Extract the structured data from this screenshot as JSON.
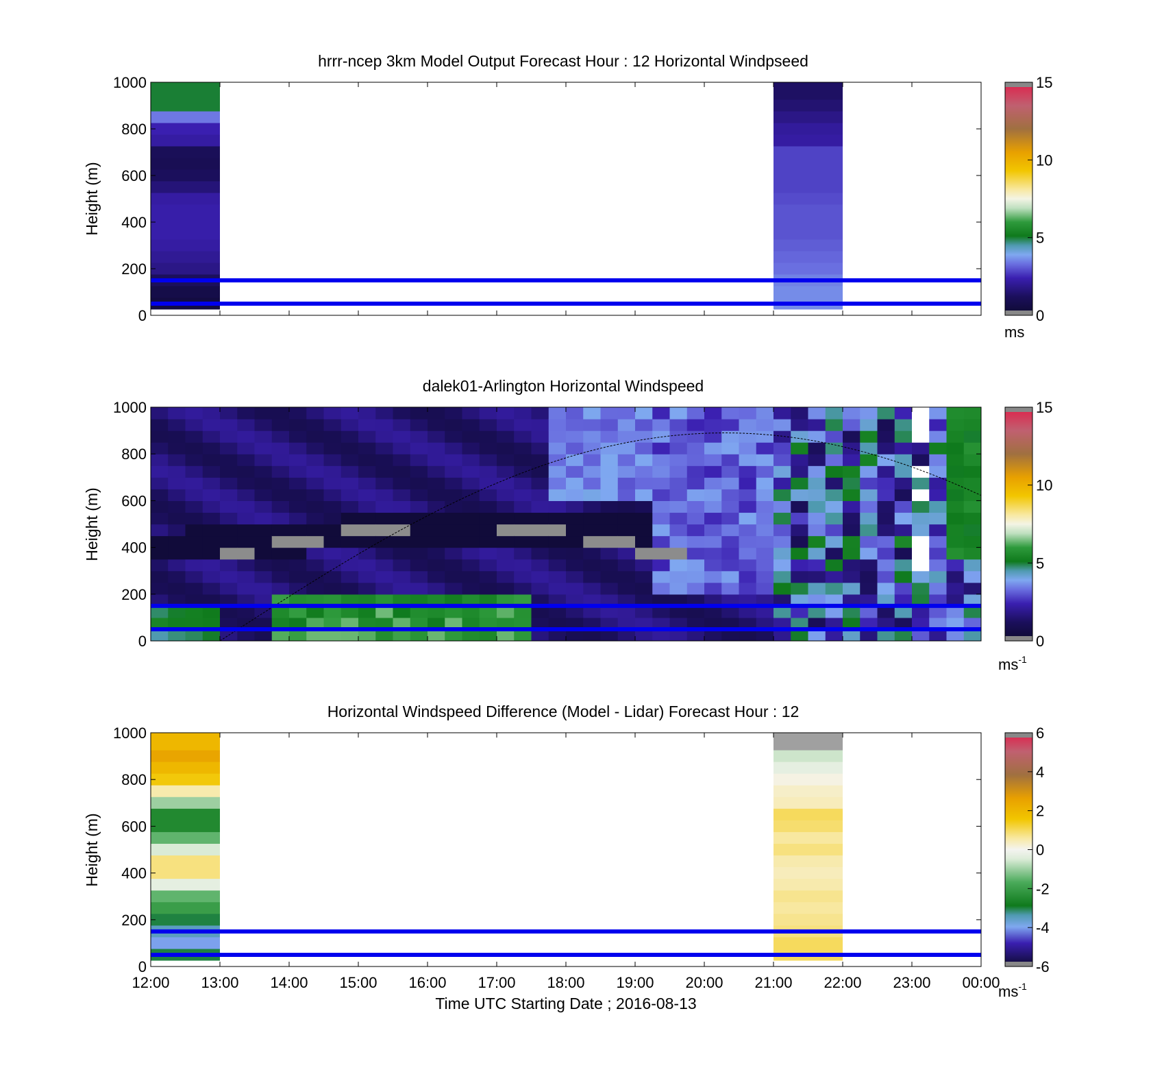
{
  "figure": {
    "xlabel": "Time UTC  Starting Date ; 2016-08-13",
    "time_ticks": [
      "12:00",
      "13:00",
      "14:00",
      "15:00",
      "16:00",
      "17:00",
      "18:00",
      "19:00",
      "20:00",
      "21:00",
      "22:00",
      "23:00",
      "00:00"
    ]
  },
  "chart_data": [
    {
      "type": "heatmap",
      "title": "hrrr-ncep 3km Model Output   Forecast Hour : 12 Horizontal Windpseed",
      "xlabel": "",
      "ylabel": "Height (m)",
      "xlim": [
        "12:00",
        "00:00"
      ],
      "ylim": [
        0,
        1000
      ],
      "y_ticks": [
        "0",
        "200",
        "400",
        "600",
        "800",
        "1000"
      ],
      "colorbar": {
        "min": 0,
        "max": 15,
        "ticks": [
          "0",
          "5",
          "10",
          "15"
        ],
        "unit": "ms",
        "unit_sup": ""
      },
      "reference_lines_m": [
        50,
        150
      ],
      "columns": [
        {
          "time_start": "12:00",
          "time_end": "13:00",
          "heights_m": [
            50,
            100,
            150,
            200,
            250,
            300,
            350,
            400,
            450,
            500,
            550,
            600,
            650,
            700,
            750,
            800,
            850,
            900,
            950
          ],
          "values": [
            0.5,
            0.7,
            1.2,
            1.8,
            2.0,
            2.2,
            2.3,
            2.3,
            2.3,
            2.2,
            1.6,
            1.2,
            1.0,
            1.1,
            2.2,
            2.4,
            3.4,
            5.0,
            5.0
          ]
        },
        {
          "time_start": "21:00",
          "time_end": "22:00",
          "heights_m": [
            50,
            100,
            150,
            200,
            250,
            300,
            350,
            400,
            450,
            500,
            550,
            600,
            650,
            700,
            750,
            800,
            850,
            900,
            950
          ],
          "values": [
            3.6,
            3.6,
            3.5,
            3.3,
            3.2,
            3.1,
            3.0,
            3.0,
            3.0,
            2.9,
            2.8,
            2.8,
            2.8,
            2.8,
            2.2,
            2.1,
            1.8,
            1.5,
            1.3
          ]
        }
      ]
    },
    {
      "type": "heatmap",
      "title": "dalek01-Arlington  Horizontal Windspeed",
      "xlabel": "",
      "ylabel": "Height (m)",
      "xlim": [
        "12:00",
        "00:00"
      ],
      "ylim": [
        0,
        1000
      ],
      "y_ticks": [
        "0",
        "200",
        "400",
        "600",
        "800",
        "1000"
      ],
      "colorbar": {
        "min": 0,
        "max": 15,
        "ticks": [
          "0",
          "5",
          "10",
          "15"
        ],
        "unit": "ms",
        "unit_sup": "-1"
      },
      "reference_lines_m": [
        50,
        150
      ],
      "time_columns": 48,
      "height_rows": 20,
      "note_values": "Lidar wind speed field (m/s): 48 quarter-hour columns from 12:00, 20 rows of 50 m"
    },
    {
      "type": "heatmap",
      "title": "Horizontal Windspeed Difference (Model - Lidar) Forecast Hour : 12",
      "xlabel": "Time UTC  Starting Date ; 2016-08-13",
      "ylabel": "Height (m)",
      "xlim": [
        "12:00",
        "00:00"
      ],
      "ylim": [
        0,
        1000
      ],
      "y_ticks": [
        "0",
        "200",
        "400",
        "600",
        "800",
        "1000"
      ],
      "colorbar": {
        "min": -6,
        "max": 6,
        "ticks": [
          "-6",
          "-4",
          "-2",
          "0",
          "2",
          "4",
          "6"
        ],
        "unit": "ms",
        "unit_sup": "-1"
      },
      "reference_lines_m": [
        50,
        150
      ],
      "columns": [
        {
          "time_start": "12:00",
          "time_end": "13:00",
          "heights_m": [
            50,
            100,
            150,
            200,
            250,
            300,
            350,
            400,
            450,
            500,
            550,
            600,
            650,
            700,
            750,
            800,
            850,
            900,
            950
          ],
          "values": [
            -3.0,
            -4.0,
            -3.5,
            -3.0,
            -2.0,
            -1.5,
            -0.3,
            0.8,
            0.8,
            -0.5,
            -1.5,
            -2.5,
            -2.5,
            -1.0,
            0.5,
            1.5,
            2.0,
            2.5,
            2.0
          ]
        },
        {
          "time_start": "21:00",
          "time_end": "22:00",
          "heights_m": [
            50,
            100,
            150,
            200,
            250,
            300,
            350,
            400,
            450,
            500,
            550,
            600,
            650,
            700,
            750,
            800,
            850,
            900,
            950
          ],
          "values": [
            1.0,
            1.0,
            0.8,
            0.7,
            0.6,
            0.7,
            0.5,
            0.4,
            0.5,
            0.8,
            0.6,
            0.9,
            1.0,
            0.4,
            0.3,
            0.1,
            -0.3,
            -0.6,
            6.5
          ]
        }
      ]
    }
  ]
}
